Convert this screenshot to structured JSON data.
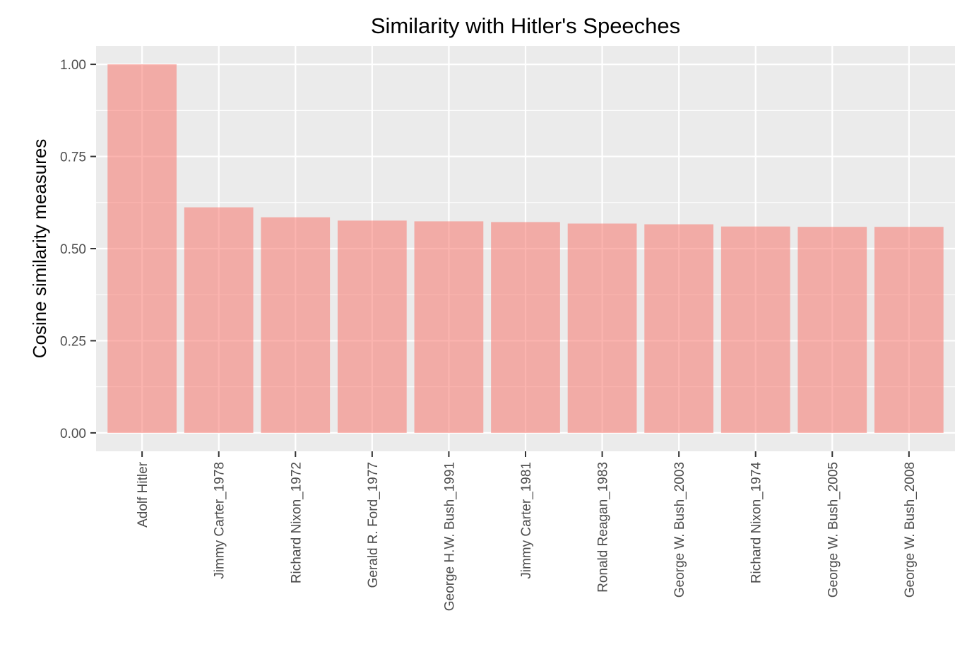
{
  "chart_data": {
    "type": "bar",
    "title": "Similarity with Hitler's Speeches",
    "xlabel": "",
    "ylabel": "Cosine similarity measures",
    "categories": [
      "Adolf Hitler",
      "Jimmy Carter_1978",
      "Richard Nixon_1972",
      "Gerald R. Ford_1977",
      "George H.W. Bush_1991",
      "Jimmy Carter_1981",
      "Ronald Reagan_1983",
      "George W. Bush_2003",
      "Richard Nixon_1974",
      "George W. Bush_2005",
      "George W. Bush_2008"
    ],
    "values": [
      1.0,
      0.612,
      0.585,
      0.576,
      0.574,
      0.572,
      0.568,
      0.566,
      0.56,
      0.559,
      0.559
    ],
    "ylim": [
      -0.05,
      1.05
    ],
    "yticks": [
      0.0,
      0.25,
      0.5,
      0.75,
      1.0
    ],
    "ytick_labels": [
      "0.00",
      "0.25",
      "0.50",
      "0.75",
      "1.00"
    ],
    "grid": true,
    "legend": "none",
    "colors": {
      "bar": "#f8766d",
      "bar_opacity": 0.55,
      "panel_background": "#ebebeb",
      "gridline": "#ffffff",
      "tick_text": "#4d4d4d",
      "tick_mark": "#333333"
    }
  }
}
